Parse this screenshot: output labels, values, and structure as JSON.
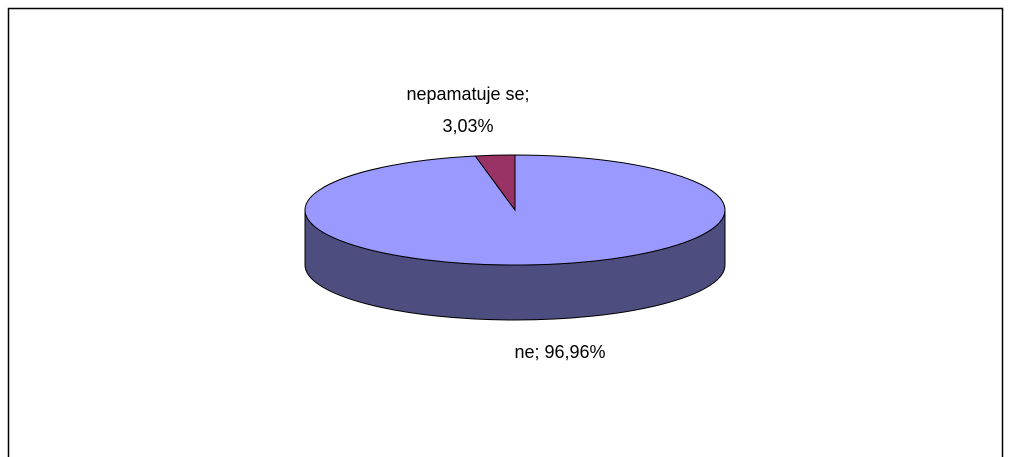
{
  "chart_data": {
    "type": "pie",
    "three_d": true,
    "values": [
      96.96,
      3.03
    ],
    "value_labels": [
      "ne; 96,96%",
      "nepamatuje se; 3,03%"
    ],
    "colors": [
      "#9999ff",
      "#993366"
    ],
    "side_colors": [
      "#4d4d80",
      "#4d1a33"
    ]
  }
}
